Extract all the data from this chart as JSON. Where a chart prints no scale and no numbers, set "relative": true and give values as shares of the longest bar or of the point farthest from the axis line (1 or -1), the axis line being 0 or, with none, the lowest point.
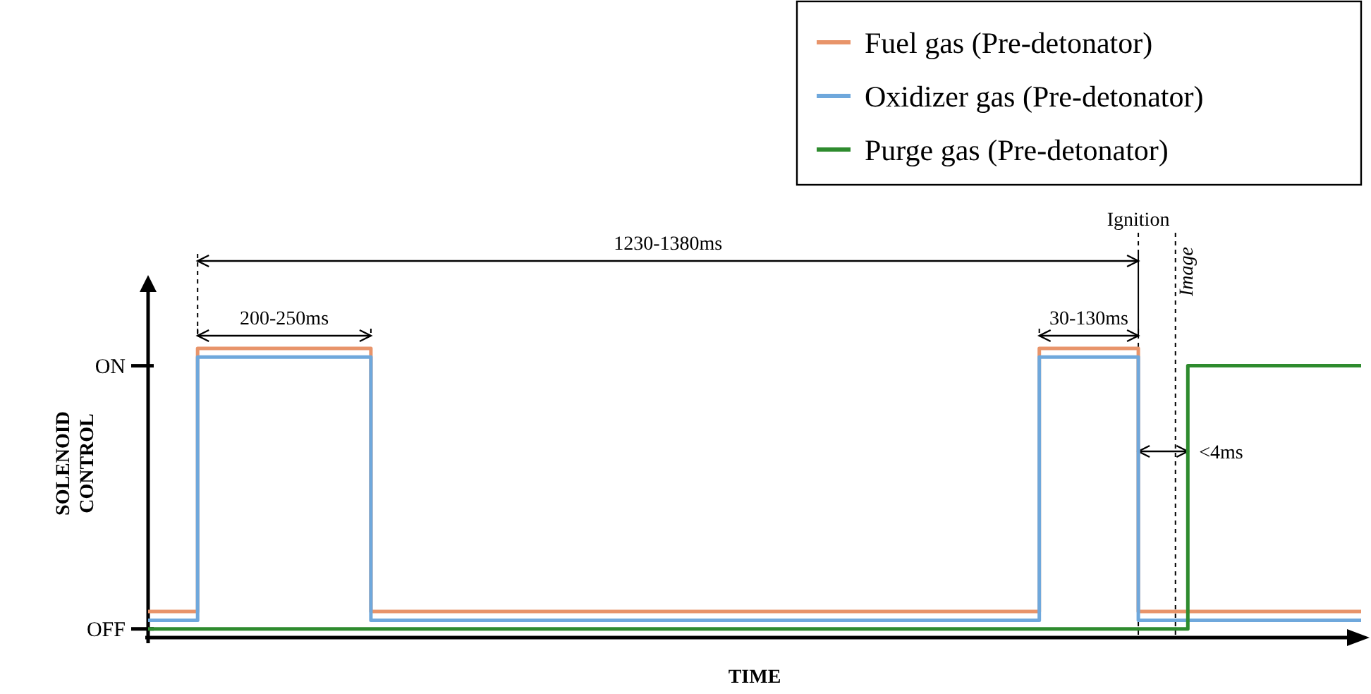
{
  "chart_data": {
    "type": "step",
    "relative": true,
    "xlabel": "TIME",
    "ylabel": "SOLENOID CONTROL",
    "legend": "top right",
    "line_style": "solid",
    "marker": "none",
    "categories": [
      null,
      null,
      null,
      null,
      null,
      null,
      null,
      null,
      null,
      null,
      null,
      null,
      null,
      null,
      null,
      null,
      null,
      null,
      null,
      null,
      null,
      null,
      null,
      null,
      null,
      null,
      null,
      null,
      null,
      null,
      null,
      null,
      null,
      null,
      null,
      null,
      null,
      null,
      null,
      null,
      null,
      null,
      null,
      null,
      null,
      null,
      null,
      null,
      null,
      null
    ],
    "series": [
      {
        "name": "Fuel gas (Pre-detonator)",
        "color": "#e8946a",
        "values": [
          0.09,
          0.09,
          1,
          1,
          1,
          1,
          1,
          1,
          1,
          0.09,
          0.09,
          0.09,
          0.09,
          0.09,
          0.09,
          0.09,
          0.09,
          0.09,
          0.09,
          0.09,
          0.09,
          0.09,
          0.09,
          0.09,
          0.09,
          0.09,
          0.09,
          0.09,
          0.09,
          0.09,
          0.09,
          0.09,
          0.09,
          0.09,
          0.09,
          0.09,
          1,
          1,
          1,
          1,
          0.09,
          0.09,
          0.09,
          0.09,
          0.09,
          0.09,
          0.09,
          0.09,
          0.09,
          0.09
        ]
      },
      {
        "name": "Oxidizer gas (Pre-detonator)",
        "color": "#6fa8dc",
        "values": [
          0.06,
          0.06,
          0.97,
          0.97,
          0.97,
          0.97,
          0.97,
          0.97,
          0.97,
          0.06,
          0.06,
          0.06,
          0.06,
          0.06,
          0.06,
          0.06,
          0.06,
          0.06,
          0.06,
          0.06,
          0.06,
          0.06,
          0.06,
          0.06,
          0.06,
          0.06,
          0.06,
          0.06,
          0.06,
          0.06,
          0.06,
          0.06,
          0.06,
          0.06,
          0.06,
          0.06,
          0.97,
          0.97,
          0.97,
          0.97,
          0.06,
          0.06,
          0.06,
          0.06,
          0.06,
          0.06,
          0.06,
          0.06,
          0.06,
          0.06
        ]
      },
      {
        "name": "Purge gas (Pre-detonator)",
        "color": "#2e8b2e",
        "values": [
          0.03,
          0.03,
          0.03,
          0.03,
          0.03,
          0.03,
          0.03,
          0.03,
          0.03,
          0.03,
          0.03,
          0.03,
          0.03,
          0.03,
          0.03,
          0.03,
          0.03,
          0.03,
          0.03,
          0.03,
          0.03,
          0.03,
          0.03,
          0.03,
          0.03,
          0.03,
          0.03,
          0.03,
          0.03,
          0.03,
          0.03,
          0.03,
          0.03,
          0.03,
          0.03,
          0.03,
          0.03,
          0.03,
          0.03,
          0.03,
          0.03,
          0.03,
          0.94,
          0.94,
          0.94,
          0.94,
          0.94,
          0.94,
          0.94,
          0.94
        ]
      }
    ],
    "annotations": [
      "Ignition",
      "Image",
      "1230-1380ms",
      "200-250ms",
      "30-130ms",
      "<4ms",
      "ON",
      "OFF"
    ]
  }
}
